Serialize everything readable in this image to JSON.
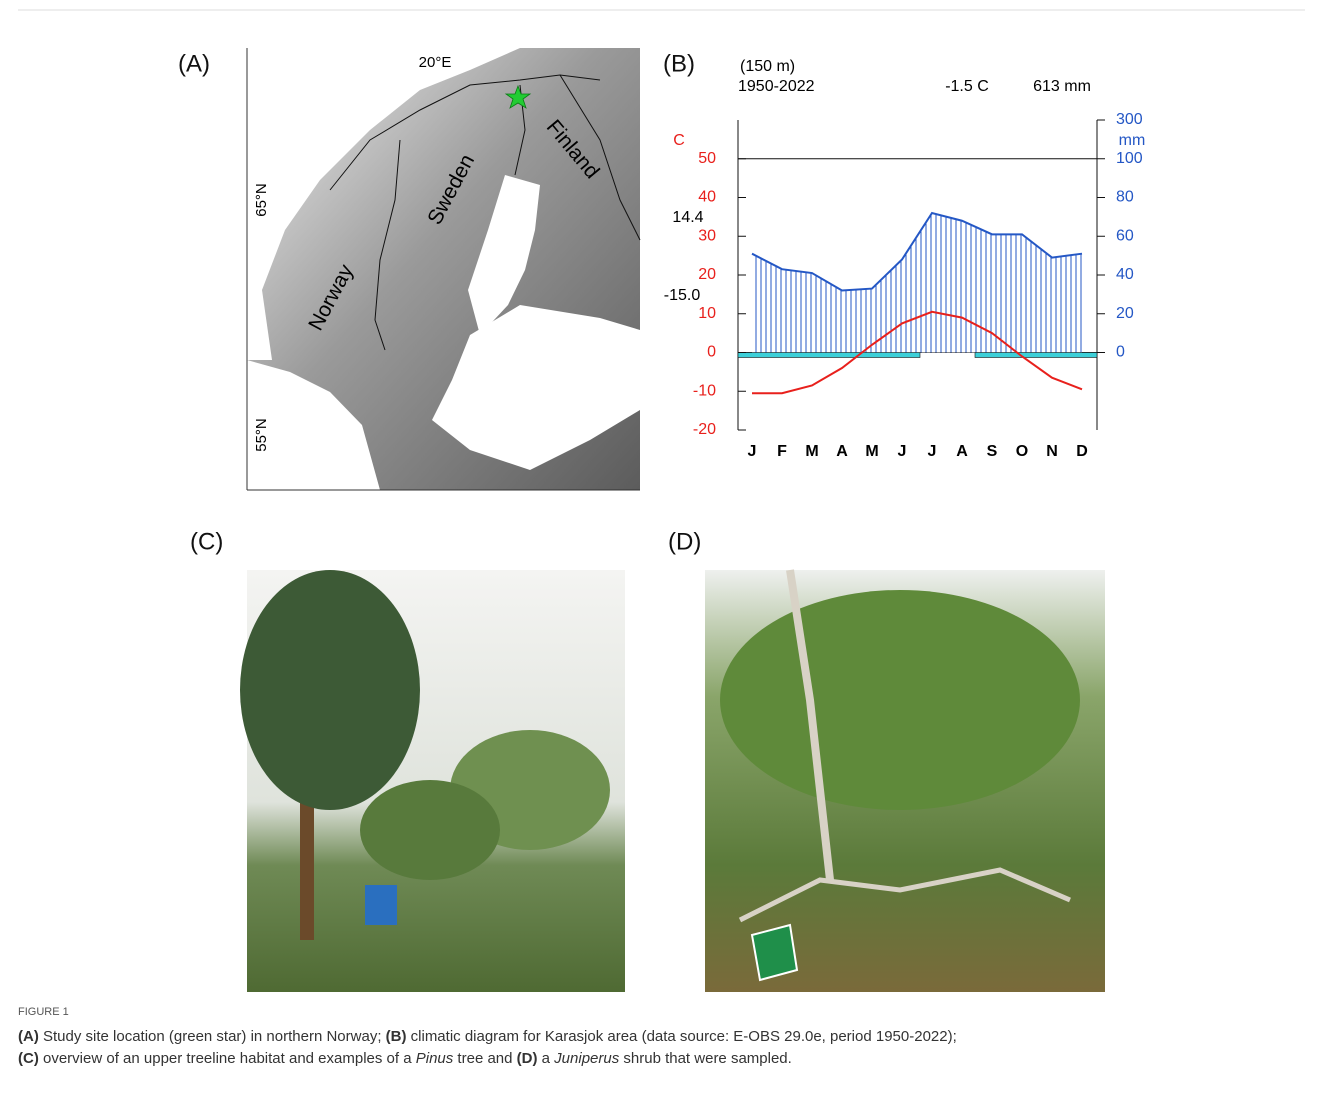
{
  "header": {
    "panel_labels": [
      "(A)",
      "(B)",
      "(C)",
      "(D)"
    ]
  },
  "map": {
    "labels": {
      "lon": "20°E",
      "lat_65": "65°N",
      "lat_55": "55°N",
      "norway": "Norway",
      "sweden": "Sweden",
      "finland": "Finland"
    }
  },
  "chart_data": {
    "type": "climate",
    "annotations": {
      "elevation": "(150 m)",
      "period": "1950-2022",
      "mean_temp": "-1.5 C",
      "annual_precip": "613 mm",
      "max_warm": "14.4",
      "min_cold": "-15.0"
    },
    "ylabel": "C",
    "y2label": "mm",
    "categories": [
      "J",
      "F",
      "M",
      "A",
      "M",
      "J",
      "J",
      "A",
      "S",
      "O",
      "N",
      "D"
    ],
    "series": [
      {
        "color": "#e8201c",
        "values": [
          -10.5,
          -10.5,
          -8.5,
          -4,
          2,
          7.5,
          10.5,
          9,
          5,
          -1,
          -6.5,
          -9.5
        ]
      },
      {
        "color": "#2457c5",
        "axis": "y2",
        "values": [
          51,
          43,
          41,
          32,
          33,
          48,
          72,
          68,
          61,
          61,
          49,
          51
        ]
      }
    ],
    "ylim": [
      -20,
      60
    ],
    "yticks": [
      -20,
      -10,
      0,
      10,
      20,
      30,
      40,
      50
    ],
    "y2lim": [
      -40,
      300
    ],
    "y2ticks": [
      0,
      20,
      40,
      60,
      80,
      100,
      300
    ]
  },
  "caption": {
    "label": "FIGURE 1",
    "lines": [
      [
        {
          "text": "(A)",
          "style": "bold"
        },
        {
          "text": " Study site location (green star) in northern Norway; "
        },
        {
          "text": "(B)",
          "style": "bold"
        },
        {
          "text": " climatic diagram for Karasjok area (data source: E-OBS 29.0e, period 1950-2022);"
        }
      ],
      [
        {
          "text": "(C)",
          "style": "bold"
        },
        {
          "text": " overview of an upper treeline habitat and examples of a "
        },
        {
          "text": "Pinus",
          "style": "italic"
        },
        {
          "text": " tree and "
        },
        {
          "text": "(D)",
          "style": "bold"
        },
        {
          "text": " a "
        },
        {
          "text": "Juniperus",
          "style": "italic"
        },
        {
          "text": " shrub that were sampled."
        }
      ]
    ]
  }
}
